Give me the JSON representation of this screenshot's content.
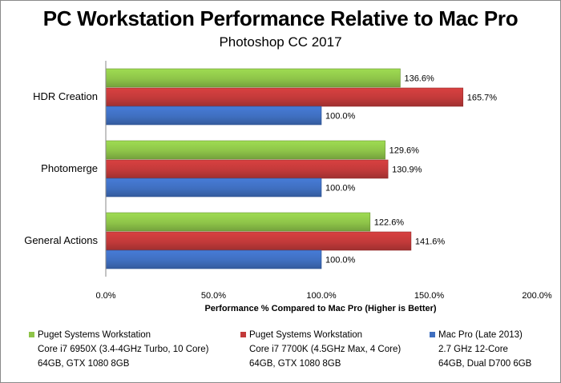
{
  "title": "PC Workstation Performance Relative to Mac Pro",
  "subtitle": "Photoshop CC 2017",
  "chart_data": {
    "type": "bar",
    "orientation": "horizontal",
    "title": "PC Workstation Performance Relative to Mac Pro",
    "subtitle": "Photoshop CC 2017",
    "xlabel": "Performance % Compared to Mac Pro (Higher is Better)",
    "categories": [
      "HDR Creation",
      "Photomerge",
      "General Actions"
    ],
    "xlim": [
      0,
      200
    ],
    "xticks": [
      "0.0%",
      "50.0%",
      "100.0%",
      "150.0%",
      "200.0%"
    ],
    "series": [
      {
        "name": "Puget Systems Workstation",
        "detail_1": "Core i7 6950X (3.4-4GHz Turbo, 10 Core)",
        "detail_2": "64GB, GTX 1080 8GB",
        "color": "#8ec449",
        "values": [
          136.6,
          129.6,
          122.6
        ],
        "labels": [
          "136.6%",
          "129.6%",
          "122.6%"
        ]
      },
      {
        "name": "Puget Systems Workstation",
        "detail_1": "Core i7 7700K (4.5GHz Max, 4 Core)",
        "detail_2": "64GB, GTX 1080 8GB",
        "color": "#c23a3a",
        "values": [
          165.7,
          130.9,
          141.6
        ],
        "labels": [
          "165.7%",
          "130.9%",
          "141.6%"
        ]
      },
      {
        "name": "Mac Pro (Late 2013)",
        "detail_1": "2.7 GHz 12-Core",
        "detail_2": "64GB, Dual D700 6GB",
        "color": "#3f6fc0",
        "values": [
          100.0,
          100.0,
          100.0
        ],
        "labels": [
          "100.0%",
          "100.0%",
          "100.0%"
        ]
      }
    ],
    "grid": false,
    "legend_position": "bottom"
  }
}
